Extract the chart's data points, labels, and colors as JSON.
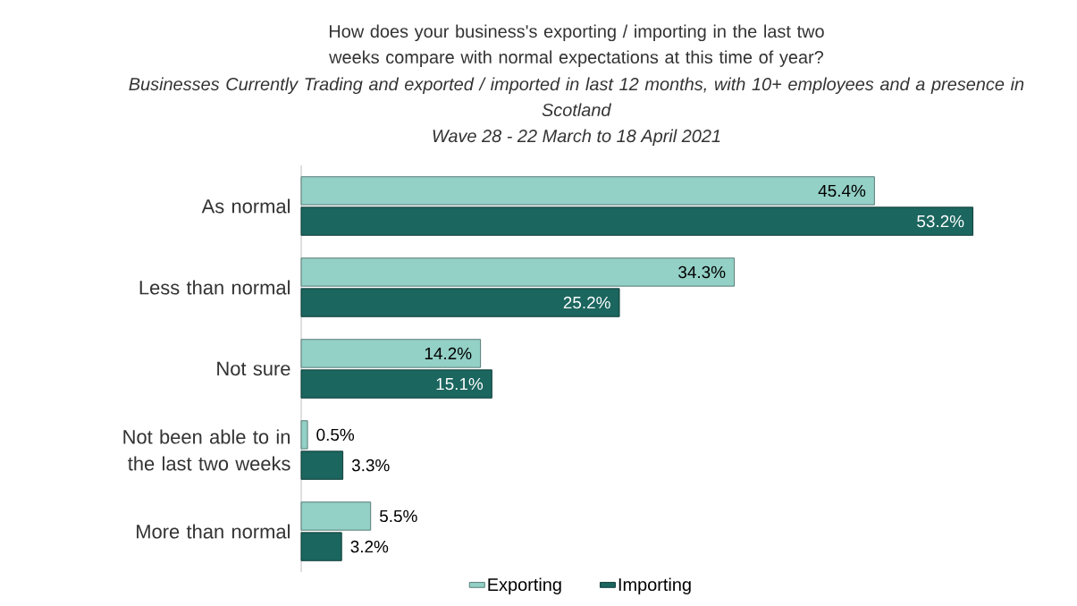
{
  "chart_data": {
    "type": "bar",
    "orientation": "horizontal",
    "title": "How does your business's exporting / importing in the last two weeks compare with normal expectations at this time of year?",
    "subtitle": "*Businesses Currently Trading and exported / imported in last 12 months, with 10+ employees and a presence in Scotland*",
    "annotations": [
      "*Wave 28 - 22 March to 18 April 2021*"
    ],
    "categories": [
      "As normal",
      "Less than normal",
      "Not sure",
      "Not been able to in the last two weeks",
      "More than normal"
    ],
    "series": [
      {
        "name": "Exporting",
        "color": "#93d0c6",
        "values": [
          45.4,
          34.3,
          14.2,
          0.5,
          5.5
        ],
        "value_labels": [
          "45.4%",
          "34.3%",
          "14.2%",
          "0.5%",
          "5.5%"
        ]
      },
      {
        "name": "Importing",
        "color": "#1b665f",
        "values": [
          53.2,
          25.2,
          15.1,
          3.3,
          3.2
        ],
        "value_labels": [
          "53.2%",
          "25.2%",
          "15.1%",
          "3.3%",
          "3.2%"
        ]
      }
    ],
    "legend": "bottom",
    "grid": false
  }
}
